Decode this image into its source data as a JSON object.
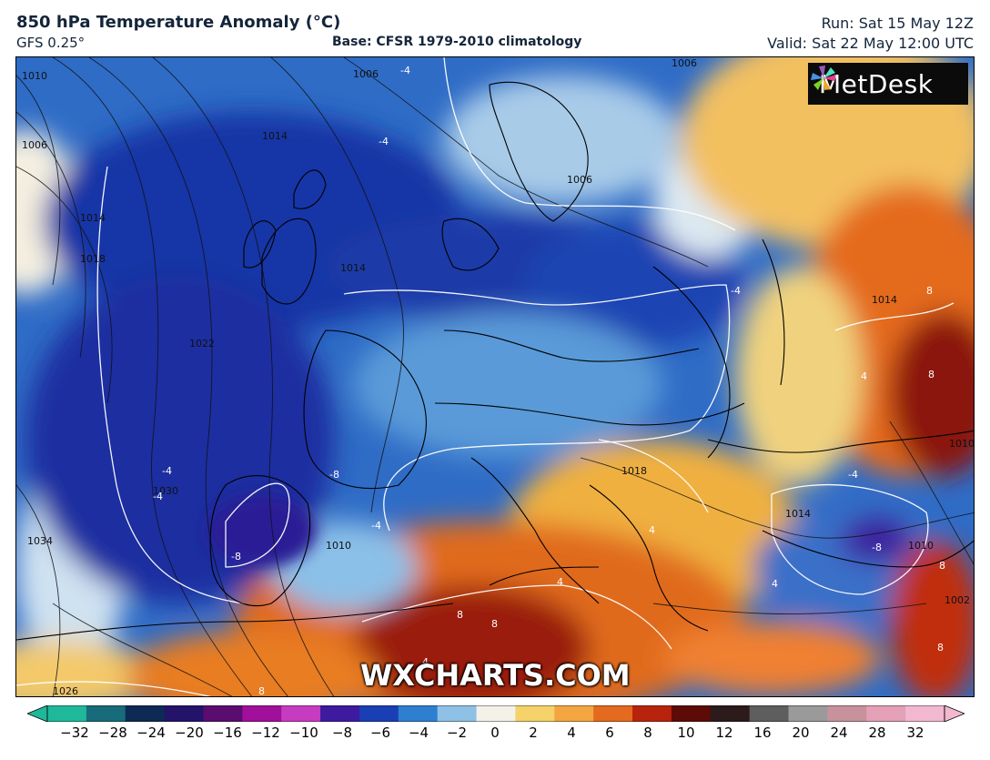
{
  "header": {
    "title": "850 hPa Temperature Anomaly (°C)",
    "model": "GFS 0.25°",
    "base": "Base: CFSR 1979-2010 climatology",
    "run": "Run: Sat 15 May 12Z",
    "valid": "Valid: Sat 22 May 12:00 UTC"
  },
  "logo": {
    "text": "MetDesk",
    "icon": "metdesk-pinwheel-logo"
  },
  "watermark": "WXCHARTS.COM",
  "isobar_labels": [
    "1010",
    "1006",
    "1006",
    "1014",
    "1014",
    "1018",
    "1006",
    "1014",
    "1022",
    "1030",
    "1034",
    "1026",
    "1010",
    "1018",
    "1014",
    "1014",
    "1010",
    "1010",
    "1002",
    "1006"
  ],
  "anomaly_labels": [
    "-4",
    "-4",
    "-4",
    "-4",
    "-8",
    "-8",
    "-4",
    "-4",
    "-4",
    "4",
    "4",
    "4",
    "8",
    "8",
    "8",
    "8",
    "4",
    "8",
    "8",
    "-4",
    "-8",
    "8",
    "4"
  ],
  "colorbar": {
    "ticks": [
      "−32",
      "−28",
      "−24",
      "−20",
      "−16",
      "−12",
      "−10",
      "−8",
      "−6",
      "−4",
      "−2",
      "0",
      "2",
      "4",
      "6",
      "8",
      "10",
      "12",
      "16",
      "20",
      "24",
      "28",
      "32"
    ],
    "colors": [
      "#1fb89a",
      "#176b7a",
      "#0d2a55",
      "#23146a",
      "#5a0d6e",
      "#a0109a",
      "#c63cc0",
      "#3d1a9e",
      "#1a3fb5",
      "#2f7fd0",
      "#8fc0e6",
      "#f4f1e8",
      "#f5d26a",
      "#f3a640",
      "#e36a1e",
      "#b8230d",
      "#5c0b06",
      "#2d1a1a",
      "#5e5e5e",
      "#9a9a9a",
      "#c7929b",
      "#e3a0b6",
      "#f2b8cf"
    ]
  }
}
